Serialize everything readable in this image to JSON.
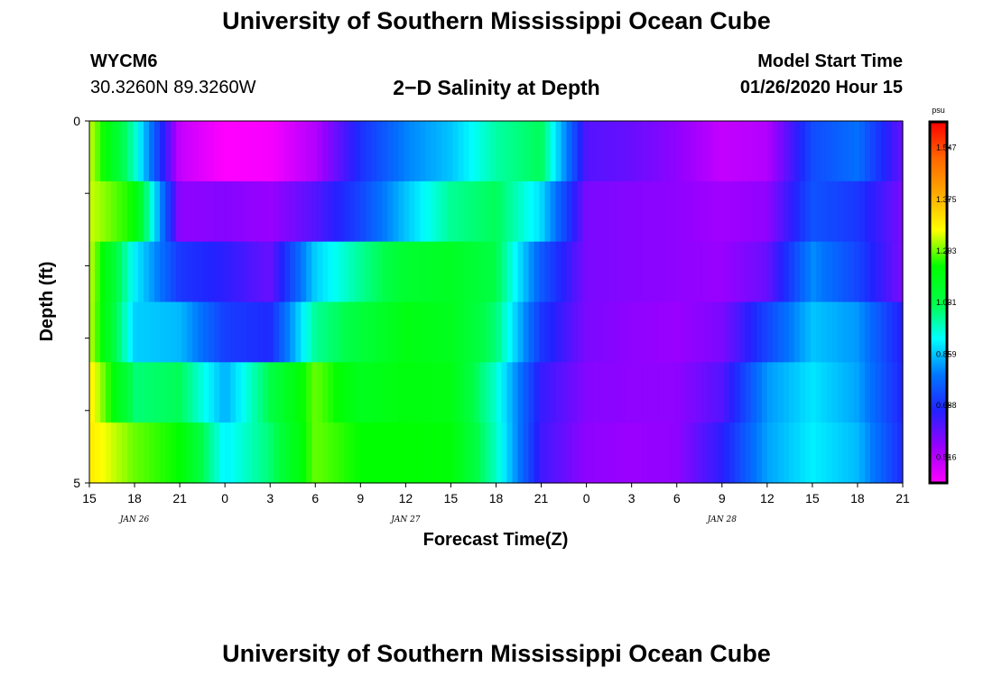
{
  "page": {
    "title_top": "University of Southern Mississippi Ocean Cube",
    "station": "WYCM6",
    "coords": "30.3260N 89.3260W",
    "subtitle": "2−D Salinity at Depth",
    "model_start_label": "Model Start Time",
    "model_start_value": "01/26/2020 Hour 15",
    "title_bottom": "University of Southern Mississippi Ocean Cube"
  },
  "chart_data": {
    "type": "heatmap",
    "title": "2−D Salinity at Depth",
    "xlabel": "Forecast Time(Z)",
    "ylabel": "Depth (ft)",
    "x_ticks": [
      "15",
      "18",
      "21",
      "0",
      "3",
      "6",
      "9",
      "12",
      "15",
      "18",
      "21",
      "0",
      "3",
      "6",
      "9",
      "12",
      "15",
      "18",
      "21"
    ],
    "date_labels": [
      {
        "label": "JAN 26",
        "tick_index": 1
      },
      {
        "label": "JAN 27",
        "tick_index": 7
      },
      {
        "label": "JAN 28",
        "tick_index": 14
      }
    ],
    "y_ticks": [
      "0",
      "",
      "",
      "",
      "",
      "5"
    ],
    "y_range": [
      0,
      5
    ],
    "colorbar": {
      "unit": "psu",
      "labels": [
        "1.547",
        "1.375",
        "1.203",
        "1.031",
        "0.859",
        "0.688",
        "0.516"
      ],
      "range": [
        0.43,
        1.633
      ],
      "colors": [
        "#ff00ff",
        "#9900ff",
        "#2222ff",
        "#0077ff",
        "#00ffff",
        "#00ff44",
        "#00ff00",
        "#ffff00",
        "#ffaa00",
        "#ff6600",
        "#ff0000"
      ]
    },
    "hours_from_start": [
      0,
      3,
      6,
      9,
      12,
      15,
      18,
      21,
      24,
      27,
      30,
      33,
      36,
      39,
      42,
      45,
      48,
      51,
      54
    ],
    "depth_layers": [
      [
        1.25,
        0.95,
        0.5,
        0.43,
        0.44,
        0.52,
        0.69,
        0.8,
        0.86,
        0.97,
        1.02,
        0.62,
        0.6,
        0.56,
        0.5,
        0.52,
        0.73,
        0.78,
        0.6
      ],
      [
        1.25,
        1.15,
        0.56,
        0.57,
        0.55,
        0.62,
        0.72,
        0.86,
        0.98,
        1.02,
        0.88,
        0.58,
        0.57,
        0.56,
        0.54,
        0.56,
        0.74,
        0.7,
        0.58
      ],
      [
        1.25,
        0.9,
        0.7,
        0.66,
        0.6,
        0.87,
        0.98,
        1.07,
        1.09,
        1.03,
        0.75,
        0.58,
        0.57,
        0.56,
        0.55,
        0.6,
        0.81,
        0.72,
        0.58
      ],
      [
        1.25,
        0.87,
        0.85,
        0.71,
        0.68,
        0.98,
        1.05,
        1.12,
        1.1,
        1.0,
        0.7,
        0.58,
        0.56,
        0.55,
        0.58,
        0.72,
        0.86,
        0.82,
        0.66
      ],
      [
        1.3,
        1.0,
        1.02,
        0.84,
        1.03,
        1.2,
        1.1,
        1.13,
        1.12,
        0.94,
        0.65,
        0.57,
        0.56,
        0.56,
        0.62,
        0.82,
        0.89,
        0.83,
        0.67
      ],
      [
        1.3,
        1.2,
        1.15,
        0.9,
        1.0,
        1.2,
        1.15,
        1.15,
        1.14,
        0.95,
        0.64,
        0.56,
        0.55,
        0.56,
        0.66,
        0.83,
        0.9,
        0.85,
        0.68
      ]
    ]
  }
}
